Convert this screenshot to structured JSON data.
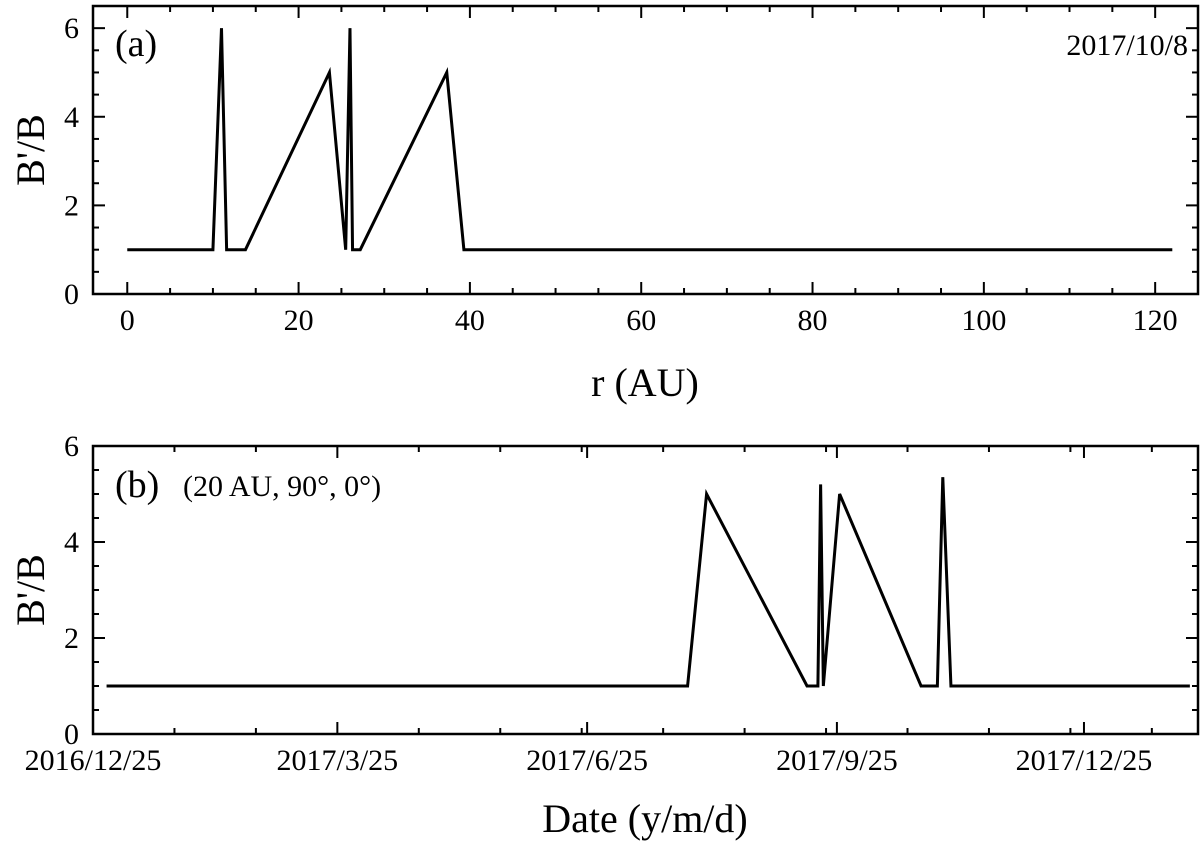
{
  "chart_data": [
    {
      "type": "line",
      "panel_label": "(a)",
      "annotation": "2017/10/8",
      "xlabel": "r (AU)",
      "ylabel": "B'/B",
      "xlim": [
        -4,
        125
      ],
      "ylim": [
        0,
        6.5
      ],
      "xticks": [
        0,
        20,
        40,
        60,
        80,
        100,
        120
      ],
      "xtick_labels": [
        "0",
        "20",
        "40",
        "60",
        "80",
        "100",
        "120"
      ],
      "yticks": [
        0,
        2,
        4,
        6
      ],
      "ytick_labels": [
        "0",
        "2",
        "4",
        "6"
      ],
      "grid": false,
      "series": [
        {
          "x": [
            0,
            10,
            11,
            11.6,
            13.8,
            23.6,
            25.5,
            26,
            26.3,
            27.2,
            37.3,
            39.3,
            122
          ],
          "y": [
            1,
            1,
            6,
            1,
            1,
            5,
            1,
            6,
            1,
            1,
            5,
            1,
            1
          ]
        }
      ]
    },
    {
      "type": "line",
      "panel_label": "(b)",
      "annotation": "(20 AU, 90°, 0°)",
      "xlabel": "Date (y/m/d)",
      "ylabel": "B'/B",
      "xlim": [
        "2016-12-25",
        "2018-02-05"
      ],
      "ylim": [
        0,
        6
      ],
      "xticks": [
        "2016-12-25",
        "2017-03-25",
        "2017-06-25",
        "2017-09-25",
        "2017-12-25"
      ],
      "xtick_labels": [
        "2016/12/25",
        "2017/3/25",
        "2017/6/25",
        "2017/9/25",
        "2017/12/25"
      ],
      "yticks": [
        0,
        2,
        4,
        6
      ],
      "ytick_labels": [
        "0",
        "2",
        "4",
        "6"
      ],
      "grid": false,
      "series": [
        {
          "x": [
            "2016-12-30",
            "2017-08-01",
            "2017-08-08",
            "2017-09-14",
            "2017-09-18",
            "2017-09-19",
            "2017-09-20",
            "2017-09-26",
            "2017-10-26",
            "2017-11-01",
            "2017-11-03",
            "2017-11-06",
            "2018-02-02"
          ],
          "y": [
            1,
            1,
            5,
            1,
            1,
            5.2,
            1,
            5,
            1,
            1,
            5.35,
            1,
            1
          ]
        }
      ]
    }
  ]
}
